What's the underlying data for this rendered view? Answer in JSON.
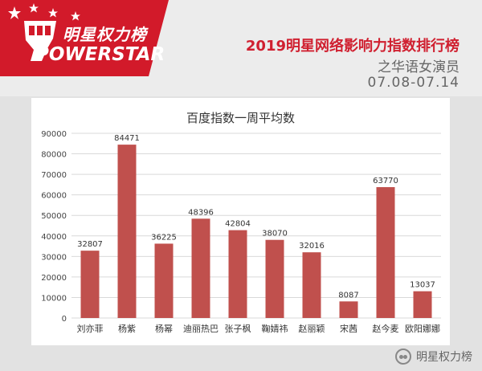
{
  "header": {
    "brand_cn": "明星权力榜",
    "brand_en": "POWERSTAR",
    "title": "2019明星网络影响力指数排行榜",
    "subtitle": "之华语女演员",
    "date_range": "07.08-07.14"
  },
  "watermark": {
    "icon": "wechat-icon",
    "text": "明星权力榜"
  },
  "colors": {
    "brand_red": "#d21a2a",
    "bar": "#c0504d"
  },
  "chart_data": {
    "type": "bar",
    "title": "百度指数一周平均数",
    "xlabel": "",
    "ylabel": "",
    "ylim": [
      0,
      90000
    ],
    "yticks": [
      0,
      10000,
      20000,
      30000,
      40000,
      50000,
      60000,
      70000,
      80000,
      90000
    ],
    "ytick_labels": [
      "0",
      "10000",
      "20000",
      "30000",
      "40000",
      "50000",
      "60000",
      "70000",
      "80000",
      "90000"
    ],
    "grid": true,
    "categories": [
      "刘亦菲",
      "杨紫",
      "杨幂",
      "迪丽热巴",
      "张子枫",
      "鞠婧祎",
      "赵丽颖",
      "宋茜",
      "赵今麦",
      "欧阳娜娜"
    ],
    "values": [
      32807,
      84471,
      36225,
      48396,
      42804,
      38070,
      32016,
      8087,
      63770,
      13037
    ],
    "value_labels": [
      "32807",
      "84471",
      "36225",
      "48396",
      "42804",
      "38070",
      "32016",
      "8087",
      "63770",
      "13037"
    ]
  }
}
